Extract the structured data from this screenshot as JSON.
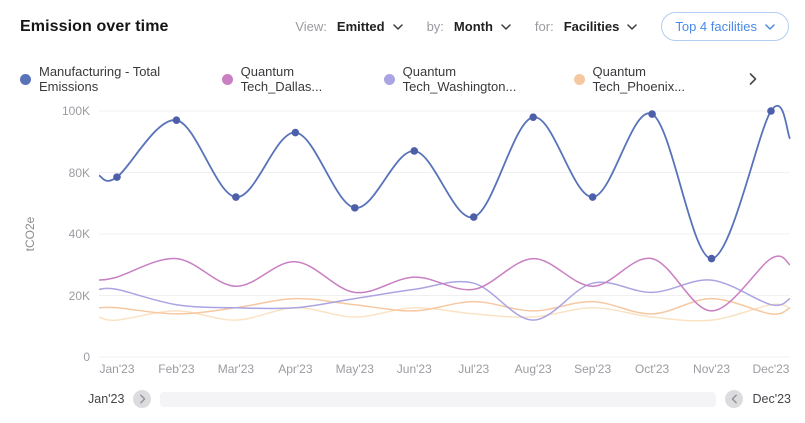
{
  "header": {
    "title": "Emission over time",
    "controls": [
      {
        "label": "View:",
        "value": "Emitted"
      },
      {
        "label": "by:",
        "value": "Month"
      },
      {
        "label": "for:",
        "value": "Facilities"
      }
    ],
    "top_button": "Top 4 facilities",
    "accent_color": "#4a8ae6"
  },
  "legend": {
    "items": [
      {
        "label": "Manufacturing - Total Emissions",
        "color": "#5973ba"
      },
      {
        "label": "Quantum Tech_Dallas...",
        "color": "#c97fc2"
      },
      {
        "label": "Quantum Tech_Washington...",
        "color": "#aba4e2"
      },
      {
        "label": "Quantum Tech_Phoenix...",
        "color": "#f6c8a2"
      }
    ]
  },
  "chart_data": {
    "type": "line",
    "title": "Emission over time",
    "ylabel": "tCO2e",
    "xlabel": "",
    "x": [
      "Jan'23",
      "Feb'23",
      "Mar'23",
      "Apr'23",
      "May'23",
      "Jun'23",
      "Jul'23",
      "Aug'23",
      "Sep'23",
      "Oct'23",
      "Nov'23",
      "Dec'23"
    ],
    "y_ticks": {
      "labels": [
        "0",
        "20K",
        "40K",
        "80K",
        "100K"
      ],
      "values_thousands": [
        0,
        20,
        40,
        80,
        100
      ]
    },
    "ylim_thousands": [
      0,
      105
    ],
    "grid": true,
    "legend_position": "top",
    "values_unit": "thousand tCO2e",
    "series": [
      {
        "name": "Manufacturing - Total Emissions",
        "color": "#5973ba",
        "show_points": true,
        "values_thousands": [
          77,
          97,
          64,
          93,
          57,
          87,
          51,
          98,
          64,
          99,
          32,
          100
        ],
        "edge_values_thousands": [
          78,
          91
        ]
      },
      {
        "name": "Quantum Tech_Dallas...",
        "color": "#c97fc2",
        "show_points": false,
        "values_thousands": [
          26,
          32,
          23,
          31,
          21,
          26,
          22,
          32,
          23,
          32,
          15,
          32
        ],
        "edge_values_thousands": [
          25,
          30
        ]
      },
      {
        "name": "Quantum Tech_Washington...",
        "color": "#aba4e2",
        "show_points": false,
        "values_thousands": [
          22,
          17,
          16,
          16,
          19,
          22,
          24,
          12,
          24,
          21,
          25,
          17
        ],
        "edge_values_thousands": [
          22,
          19
        ]
      },
      {
        "name": "Quantum Tech_Phoenix...",
        "color": "#f6c8a2",
        "show_points": false,
        "values_thousands": [
          16,
          14,
          16,
          19,
          17,
          15,
          18,
          15,
          18,
          14,
          19,
          14
        ],
        "edge_values_thousands": [
          16,
          16
        ]
      },
      {
        "name": "",
        "color": "#fae3c4",
        "show_points": false,
        "values_thousands": [
          12,
          15,
          12,
          16,
          13,
          16,
          14,
          13,
          16,
          13,
          12,
          17
        ],
        "edge_values_thousands": [
          13,
          16
        ],
        "note": "fifth line visible in plot; its legend entry is scrolled out of view"
      }
    ]
  },
  "scroll": {
    "start_label": "Jan'23",
    "end_label": "Dec'23"
  }
}
